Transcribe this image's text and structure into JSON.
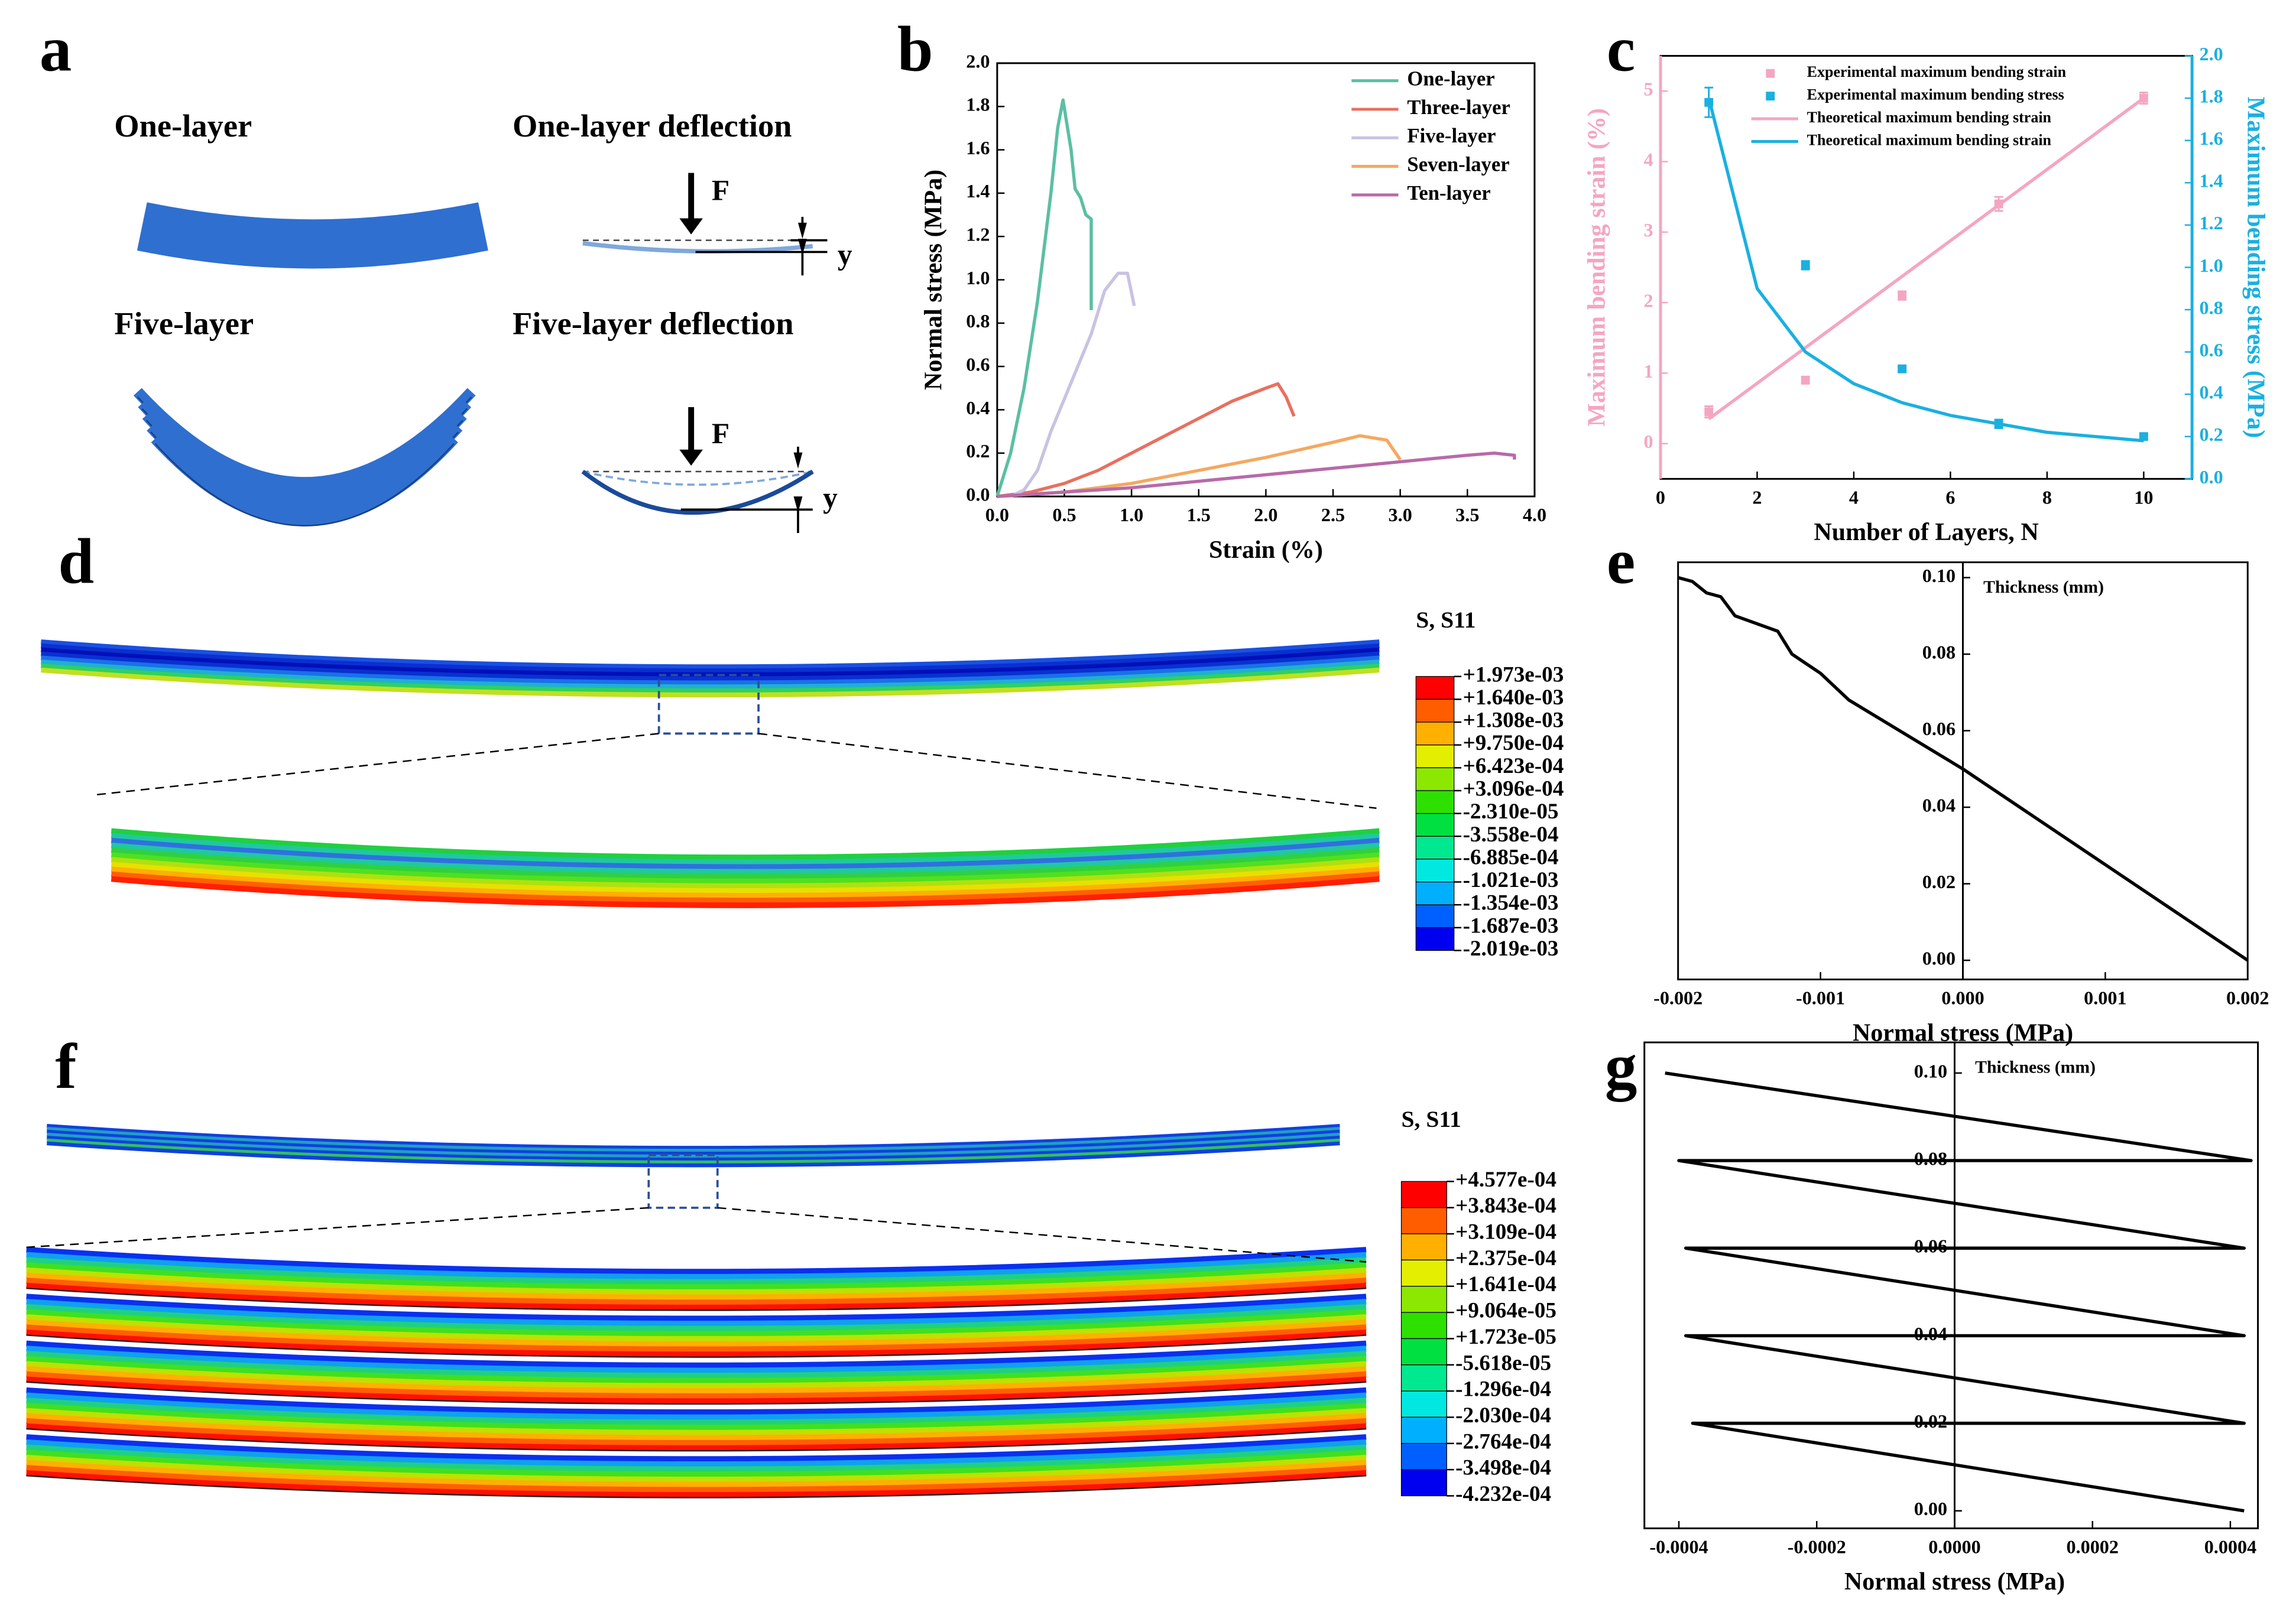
{
  "panel_labels": [
    "a",
    "b",
    "c",
    "d",
    "e",
    "f",
    "g"
  ],
  "panel_a": {
    "one_layer": "One-layer",
    "one_layer_deflection": "One-layer deflection",
    "five_layer": "Five-layer",
    "five_layer_deflection": "Five-layer deflection",
    "force": "F",
    "deflection": "y"
  },
  "contour_d": {
    "legend_title": "S, S11",
    "legend_values": [
      "+1.973e-03",
      "+1.640e-03",
      "+1.308e-03",
      "+9.750e-04",
      "+6.423e-04",
      "+3.096e-04",
      "-2.310e-05",
      "-3.558e-04",
      "-6.885e-04",
      "-1.021e-03",
      "-1.354e-03",
      "-1.687e-03",
      "-2.019e-03"
    ]
  },
  "contour_f": {
    "legend_title": "S, S11",
    "legend_values": [
      "+4.577e-04",
      "+3.843e-04",
      "+3.109e-04",
      "+2.375e-04",
      "+1.641e-04",
      "+9.064e-05",
      "+1.723e-05",
      "-5.618e-05",
      "-1.296e-04",
      "-2.030e-04",
      "-2.764e-04",
      "-3.498e-04",
      "-4.232e-04"
    ]
  },
  "chart_data": [
    {
      "type": "line",
      "x_label": "Strain (%)",
      "y_label": "Normal stress (MPa)",
      "legend": "upper right",
      "xlim": [
        0,
        4
      ],
      "ylim": [
        0,
        2
      ],
      "xticks": [
        {
          "value": 0,
          "label": "0.0"
        },
        0.5,
        {
          "value": 1,
          "label": "1.0"
        },
        1.5,
        {
          "value": 2,
          "label": "2.0"
        },
        2.5,
        {
          "value": 3,
          "label": "3.0"
        },
        3.5,
        {
          "value": 4,
          "label": "4.0"
        }
      ],
      "yticks": [
        {
          "value": 0,
          "label": "0.0"
        },
        0.2,
        0.4,
        0.6,
        0.8,
        {
          "value": 1,
          "label": "1.0"
        },
        1.2,
        1.4,
        1.6,
        1.8,
        {
          "value": 2,
          "label": "2.0"
        }
      ],
      "series": [
        {
          "name": "One-layer",
          "color": "#5bbfa3",
          "x": [
            0,
            0.1,
            0.2,
            0.3,
            0.4,
            0.45,
            0.49,
            0.55,
            0.58,
            0.62,
            0.66,
            0.7,
            0.7
          ],
          "values": [
            0,
            0.2,
            0.5,
            0.9,
            1.4,
            1.7,
            1.83,
            1.6,
            1.42,
            1.38,
            1.3,
            1.28,
            0.86
          ]
        },
        {
          "name": "Three-layer",
          "color": "#e8705f",
          "x": [
            0,
            0.25,
            0.5,
            0.75,
            1.0,
            1.25,
            1.5,
            1.75,
            2.0,
            2.09,
            2.15,
            2.21
          ],
          "values": [
            0,
            0.02,
            0.06,
            0.12,
            0.2,
            0.28,
            0.36,
            0.44,
            0.5,
            0.52,
            0.46,
            0.37
          ]
        },
        {
          "name": "Five-layer",
          "color": "#c9c2e2",
          "x": [
            0.1,
            0.2,
            0.3,
            0.4,
            0.5,
            0.6,
            0.7,
            0.8,
            0.9,
            0.97,
            1.02
          ],
          "values": [
            0,
            0.03,
            0.12,
            0.3,
            0.45,
            0.6,
            0.75,
            0.95,
            1.03,
            1.03,
            0.88
          ]
        },
        {
          "name": "Seven-layer",
          "color": "#f5a860",
          "x": [
            0,
            0.5,
            1.0,
            1.5,
            2.0,
            2.5,
            2.7,
            2.9,
            3.0
          ],
          "values": [
            0,
            0.02,
            0.06,
            0.12,
            0.18,
            0.25,
            0.28,
            0.26,
            0.17
          ]
        },
        {
          "name": "Ten-layer",
          "color": "#b86aa8",
          "x": [
            0,
            0.5,
            1.0,
            1.5,
            2.0,
            2.5,
            3.0,
            3.5,
            3.7,
            3.85,
            3.85
          ],
          "values": [
            0,
            0.02,
            0.04,
            0.07,
            0.1,
            0.13,
            0.16,
            0.19,
            0.2,
            0.19,
            0.17
          ]
        }
      ]
    },
    {
      "type": "line",
      "x_label": "Number of Layers,  N",
      "y_label": "Maximum bending strain (%)",
      "y2_label": "Maximum bending stress (MPa)",
      "legend": "upper left",
      "y_color": "#f4a6c0",
      "y2_color": "#1ab0e0",
      "xlim": [
        0,
        11
      ],
      "ylim": [
        -0.5,
        5.5
      ],
      "y2lim": [
        0,
        2
      ],
      "xticks": [
        0,
        2,
        4,
        6,
        8,
        10
      ],
      "yticks": [
        0,
        1,
        2,
        3,
        4,
        5
      ],
      "y2ticks": [
        {
          "value": 0,
          "label": "0.0"
        },
        0.2,
        0.4,
        0.6,
        0.8,
        {
          "value": 1,
          "label": "1.0"
        },
        1.2,
        1.4,
        1.6,
        1.8,
        {
          "value": 2,
          "label": "2.0"
        }
      ],
      "series": [
        {
          "name": "Experimental maximum bending strain",
          "type": "scatter",
          "color": "#f4a6c0",
          "x": [
            1,
            3,
            5,
            7,
            10
          ],
          "values": [
            0.45,
            0.9,
            2.1,
            3.4,
            4.9
          ],
          "errors": [
            0.08,
            0.05,
            0.06,
            0.1,
            0.08
          ]
        },
        {
          "name": "Experimental maximum bending stress",
          "type": "scatter",
          "axis": "y2",
          "color": "#1ab0e0",
          "x": [
            1,
            3,
            5,
            7,
            10
          ],
          "values": [
            1.78,
            1.01,
            0.52,
            0.26,
            0.2
          ],
          "errors": [
            0.07,
            0.02,
            0.01,
            0.02,
            0.01
          ]
        },
        {
          "name": "Theoretical maximum bending strain",
          "color": "#f4a6c0",
          "x": [
            1,
            10
          ],
          "values": [
            0.35,
            4.9
          ]
        },
        {
          "name": "Theoretical maximum bending strain",
          "axis": "y2",
          "color": "#1ab0e0",
          "x": [
            1,
            2,
            3,
            4,
            5,
            6,
            7,
            8,
            9,
            10
          ],
          "values": [
            1.8,
            0.9,
            0.6,
            0.45,
            0.36,
            0.3,
            0.26,
            0.22,
            0.2,
            0.18
          ]
        }
      ]
    },
    {
      "type": "line",
      "x_label": "Normal stress (MPa)",
      "annotation": "Thickness (mm)",
      "xlim": [
        -0.002,
        0.002
      ],
      "ylim": [
        -0.005,
        0.104
      ],
      "xticks": [
        -0.002,
        -0.001,
        {
          "value": 0,
          "label": "0.000"
        },
        0.001,
        0.002
      ],
      "yticks": [
        {
          "value": 0,
          "label": "0.00"
        },
        0.02,
        0.04,
        0.06,
        0.08,
        {
          "value": 0.1,
          "label": "0.10"
        }
      ],
      "series": [
        {
          "color": "#000000",
          "x": [
            -0.002,
            -0.0019,
            -0.0018,
            -0.0017,
            -0.0016,
            -0.0013,
            -0.0012,
            -0.001,
            -0.0008,
            0,
            0.002
          ],
          "values": [
            0.1,
            0.099,
            0.096,
            0.095,
            0.09,
            0.086,
            0.08,
            0.075,
            0.068,
            0.05,
            0
          ]
        }
      ]
    },
    {
      "type": "line",
      "x_label": "Normal stress (MPa)",
      "annotation": "Thickness (mm)",
      "xlim": [
        -0.00045,
        0.00044
      ],
      "ylim": [
        -0.004,
        0.107
      ],
      "xticks": [
        -0.0004,
        -0.0002,
        {
          "value": 0,
          "label": "0.0000"
        },
        0.0002,
        0.0004
      ],
      "yticks": [
        {
          "value": 0,
          "label": "0.00"
        },
        0.02,
        0.04,
        0.06,
        0.08,
        {
          "value": 0.1,
          "label": "0.10"
        }
      ],
      "series": [
        {
          "color": "#000000",
          "x": [
            0.00042,
            -0.00038,
            0.00042,
            -0.00039,
            0.00042,
            -0.00039,
            0.00042,
            -0.0004,
            0.00043,
            -0.00042
          ],
          "values": [
            0,
            0.02,
            0.02,
            0.04,
            0.04,
            0.06,
            0.06,
            0.08,
            0.08,
            0.1
          ]
        }
      ]
    }
  ]
}
